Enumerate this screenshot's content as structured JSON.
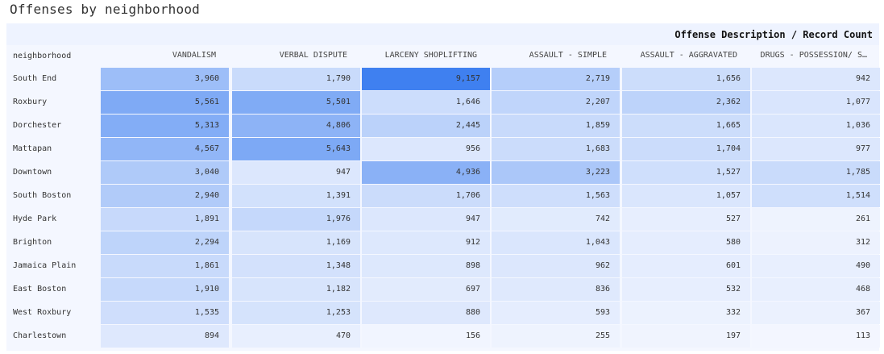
{
  "title": "Offenses by neighborhood",
  "chart_data": {
    "type": "heatmap",
    "title": "Offenses by neighborhood",
    "pivot_label": "Offense Description / Record Count",
    "row_header": "neighborhood",
    "columns": [
      "VANDALISM",
      "VERBAL DISPUTE",
      "LARCENY SHOPLIFTING",
      "ASSAULT - SIMPLE",
      "ASSAULT - AGGRAVATED",
      "DRUGS - POSSESSION/ S…"
    ],
    "rows": [
      {
        "name": "South End",
        "values": [
          3960,
          1790,
          9157,
          2719,
          1656,
          942
        ],
        "labels": [
          "3,960",
          "1,790",
          "9,157",
          "2,719",
          "1,656",
          "942"
        ]
      },
      {
        "name": "Roxbury",
        "values": [
          5561,
          5501,
          1646,
          2207,
          2362,
          1077
        ],
        "labels": [
          "5,561",
          "5,501",
          "1,646",
          "2,207",
          "2,362",
          "1,077"
        ]
      },
      {
        "name": "Dorchester",
        "values": [
          5313,
          4806,
          2445,
          1859,
          1665,
          1036
        ],
        "labels": [
          "5,313",
          "4,806",
          "2,445",
          "1,859",
          "1,665",
          "1,036"
        ]
      },
      {
        "name": "Mattapan",
        "values": [
          4567,
          5643,
          956,
          1683,
          1704,
          977
        ],
        "labels": [
          "4,567",
          "5,643",
          "956",
          "1,683",
          "1,704",
          "977"
        ]
      },
      {
        "name": "Downtown",
        "values": [
          3040,
          947,
          4936,
          3223,
          1527,
          1785
        ],
        "labels": [
          "3,040",
          "947",
          "4,936",
          "3,223",
          "1,527",
          "1,785"
        ]
      },
      {
        "name": "South Boston",
        "values": [
          2940,
          1391,
          1706,
          1563,
          1057,
          1514
        ],
        "labels": [
          "2,940",
          "1,391",
          "1,706",
          "1,563",
          "1,057",
          "1,514"
        ]
      },
      {
        "name": "Hyde Park",
        "values": [
          1891,
          1976,
          947,
          742,
          527,
          261
        ],
        "labels": [
          "1,891",
          "1,976",
          "947",
          "742",
          "527",
          "261"
        ]
      },
      {
        "name": "Brighton",
        "values": [
          2294,
          1169,
          912,
          1043,
          580,
          312
        ],
        "labels": [
          "2,294",
          "1,169",
          "912",
          "1,043",
          "580",
          "312"
        ]
      },
      {
        "name": "Jamaica Plain",
        "values": [
          1861,
          1348,
          898,
          962,
          601,
          490
        ],
        "labels": [
          "1,861",
          "1,348",
          "898",
          "962",
          "601",
          "490"
        ]
      },
      {
        "name": "East Boston",
        "values": [
          1910,
          1182,
          697,
          836,
          532,
          468
        ],
        "labels": [
          "1,910",
          "1,182",
          "697",
          "836",
          "532",
          "468"
        ]
      },
      {
        "name": "West Roxbury",
        "values": [
          1535,
          1253,
          880,
          593,
          332,
          367
        ],
        "labels": [
          "1,535",
          "1,253",
          "880",
          "593",
          "332",
          "367"
        ]
      },
      {
        "name": "Charlestown",
        "values": [
          894,
          470,
          156,
          255,
          197,
          113
        ],
        "labels": [
          "894",
          "470",
          "156",
          "255",
          "197",
          "113"
        ]
      }
    ],
    "color_scale": {
      "low": "#f7f9ff",
      "high": "#3f80f0"
    }
  }
}
